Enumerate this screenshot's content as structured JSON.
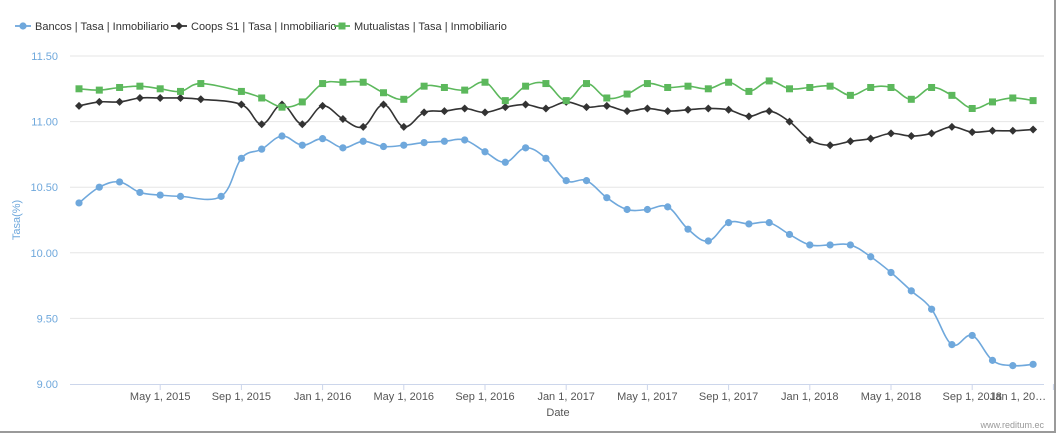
{
  "chart_data": {
    "type": "line",
    "title": "",
    "xlabel": "Date",
    "ylabel": "Tasa(%)",
    "ylim": [
      9.0,
      11.5
    ],
    "yticks": [
      "9.00",
      "9.50",
      "10.00",
      "10.50",
      "11.00",
      "11.50"
    ],
    "xticks": [
      "May 1, 2015",
      "Sep 1, 2015",
      "Jan 1, 2016",
      "May 1, 2016",
      "Sep 1, 2016",
      "Jan 1, 2017",
      "May 1, 2017",
      "Sep 1, 2017",
      "Jan 1, 2018",
      "May 1, 2018",
      "Sep 1, 2018",
      "Jan 1, 20…"
    ],
    "x": [
      "2015-01",
      "2015-02",
      "2015-03",
      "2015-04",
      "2015-05",
      "2015-06",
      "2015-07",
      "2015-08",
      "2015-09",
      "2015-10",
      "2015-11",
      "2015-12",
      "2016-01",
      "2016-02",
      "2016-03",
      "2016-04",
      "2016-05",
      "2016-06",
      "2016-07",
      "2016-08",
      "2016-09",
      "2016-10",
      "2016-11",
      "2016-12",
      "2017-01",
      "2017-02",
      "2017-03",
      "2017-04",
      "2017-05",
      "2017-06",
      "2017-07",
      "2017-08",
      "2017-09",
      "2017-10",
      "2017-11",
      "2017-12",
      "2018-01",
      "2018-02",
      "2018-03",
      "2018-04",
      "2018-05",
      "2018-06",
      "2018-07",
      "2018-08",
      "2018-09",
      "2018-10",
      "2018-11",
      "2018-12",
      "2019-01",
      "2019-02"
    ],
    "legend_position": "top-left",
    "grid": "horizontal",
    "series": [
      {
        "name": "Bancos | Tasa | Inmobiliario",
        "color": "#6fa8dc",
        "marker": "circle",
        "values": [
          10.38,
          10.5,
          10.54,
          10.46,
          10.44,
          10.43,
          null,
          10.43,
          10.72,
          10.79,
          10.89,
          10.82,
          10.87,
          10.8,
          10.85,
          10.81,
          10.82,
          10.84,
          10.85,
          10.86,
          10.77,
          10.69,
          10.8,
          10.72,
          10.55,
          10.55,
          10.42,
          10.33,
          10.33,
          10.35,
          10.18,
          10.09,
          10.23,
          10.22,
          10.23,
          10.14,
          10.06,
          10.06,
          10.06,
          9.97,
          9.85,
          9.71,
          9.57,
          9.3,
          9.37,
          9.18,
          9.14,
          9.15,
          null,
          null
        ]
      },
      {
        "name": "Coops S1 | Tasa | Inmobiliario",
        "color": "#333333",
        "marker": "diamond",
        "values": [
          11.12,
          11.15,
          11.15,
          11.18,
          11.18,
          11.18,
          11.17,
          null,
          11.13,
          10.98,
          11.13,
          10.98,
          11.12,
          11.02,
          10.96,
          11.13,
          10.96,
          11.07,
          11.08,
          11.1,
          11.07,
          11.11,
          11.13,
          11.1,
          11.15,
          11.11,
          11.12,
          11.08,
          11.1,
          11.08,
          11.09,
          11.1,
          11.09,
          11.04,
          11.08,
          11.0,
          10.86,
          10.82,
          10.85,
          10.87,
          10.91,
          10.89,
          10.91,
          10.96,
          10.92,
          10.93,
          10.93,
          10.94,
          null,
          null
        ]
      },
      {
        "name": "Mutualistas | Tasa | Inmobiliario",
        "color": "#5cb85c",
        "marker": "square",
        "values": [
          11.25,
          11.24,
          11.26,
          11.27,
          11.25,
          11.23,
          11.29,
          null,
          11.23,
          11.18,
          11.11,
          11.15,
          11.29,
          11.3,
          11.3,
          11.22,
          11.17,
          11.27,
          11.26,
          11.24,
          11.3,
          11.16,
          11.27,
          11.29,
          11.16,
          11.29,
          11.18,
          11.21,
          11.29,
          11.26,
          11.27,
          11.25,
          11.3,
          11.23,
          11.31,
          11.25,
          11.26,
          11.27,
          11.2,
          11.26,
          11.26,
          11.17,
          11.26,
          11.2,
          11.1,
          11.15,
          11.18,
          11.16,
          null,
          null
        ]
      }
    ],
    "credit": "www.reditum.ec"
  }
}
